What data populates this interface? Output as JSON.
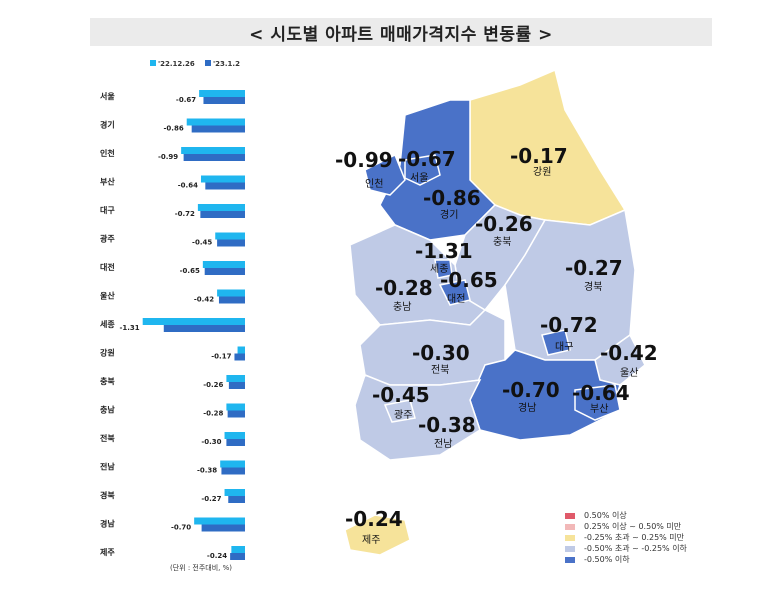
{
  "title": "< 시도별 아파트 매매가격지수 변동률 >",
  "unit_note": "(단위 : 전주대비, %)",
  "colors": {
    "series_prev": "#1fb6ef",
    "series_curr": "#2f6cc4",
    "map_strong_down": "#4a72c8",
    "map_down": "#bfcae6",
    "map_neutral": "#f6e39a",
    "map_up_mid": "#f2b8b8",
    "map_up": "#e05a6a"
  },
  "chart_data": [
    {
      "type": "bar",
      "orientation": "horizontal",
      "legend_position": "top",
      "series_names": [
        "'22.12.26",
        "'23.1.2"
      ],
      "categories": [
        "서울",
        "경기",
        "인천",
        "부산",
        "대구",
        "광주",
        "대전",
        "울산",
        "세종",
        "강원",
        "충북",
        "충남",
        "전북",
        "전남",
        "경북",
        "경남",
        "제주"
      ],
      "series": [
        {
          "name": "'22.12.26",
          "values": [
            -0.74,
            -0.94,
            -1.03,
            -0.71,
            -0.76,
            -0.48,
            -0.68,
            -0.45,
            -1.65,
            -0.12,
            -0.3,
            -0.3,
            -0.33,
            -0.4,
            -0.33,
            -0.82,
            -0.22
          ]
        },
        {
          "name": "'23.1.2",
          "values": [
            -0.67,
            -0.86,
            -0.99,
            -0.64,
            -0.72,
            -0.45,
            -0.65,
            -0.42,
            -1.31,
            -0.17,
            -0.26,
            -0.28,
            -0.3,
            -0.38,
            -0.27,
            -0.7,
            -0.24
          ]
        }
      ],
      "value_labels": [
        "-0.67",
        "-0.86",
        "-0.99",
        "-0.64",
        "-0.72",
        "-0.45",
        "-0.65",
        "-0.42",
        "-1.31",
        "-0.17",
        "-0.26",
        "-0.28",
        "-0.30",
        "-0.38",
        "-0.27",
        "-0.70",
        "-0.24"
      ]
    },
    {
      "type": "choropleth-map",
      "regions": [
        {
          "name": "인천",
          "value": "-0.99",
          "class": "strong_down"
        },
        {
          "name": "서울",
          "value": "-0.67",
          "class": "strong_down"
        },
        {
          "name": "경기",
          "value": "-0.86",
          "class": "strong_down"
        },
        {
          "name": "강원",
          "value": "-0.17",
          "class": "neutral"
        },
        {
          "name": "충북",
          "value": "-0.26",
          "class": "down"
        },
        {
          "name": "세종",
          "value": "-1.31",
          "class": "strong_down"
        },
        {
          "name": "대전",
          "value": "-0.65",
          "class": "strong_down"
        },
        {
          "name": "충남",
          "value": "-0.28",
          "class": "down"
        },
        {
          "name": "경북",
          "value": "-0.27",
          "class": "down"
        },
        {
          "name": "대구",
          "value": "-0.72",
          "class": "strong_down"
        },
        {
          "name": "전북",
          "value": "-0.30",
          "class": "down"
        },
        {
          "name": "울산",
          "value": "-0.42",
          "class": "down"
        },
        {
          "name": "광주",
          "value": "-0.45",
          "class": "down"
        },
        {
          "name": "경남",
          "value": "-0.70",
          "class": "strong_down"
        },
        {
          "name": "부산",
          "value": "-0.64",
          "class": "strong_down"
        },
        {
          "name": "전남",
          "value": "-0.38",
          "class": "down"
        },
        {
          "name": "제주",
          "value": "-0.24",
          "class": "neutral"
        }
      ],
      "legend": [
        {
          "label": "0.50% 이상",
          "class": "up"
        },
        {
          "label": "0.25% 이상 ~ 0.50% 미만",
          "class": "up_mid"
        },
        {
          "label": "-0.25% 초과 ~ 0.25% 미만",
          "class": "neutral"
        },
        {
          "label": "-0.50% 초과 ~ -0.25% 이하",
          "class": "down"
        },
        {
          "label": "-0.50% 이하",
          "class": "strong_down"
        }
      ],
      "legend_position": "bottom-right"
    }
  ]
}
